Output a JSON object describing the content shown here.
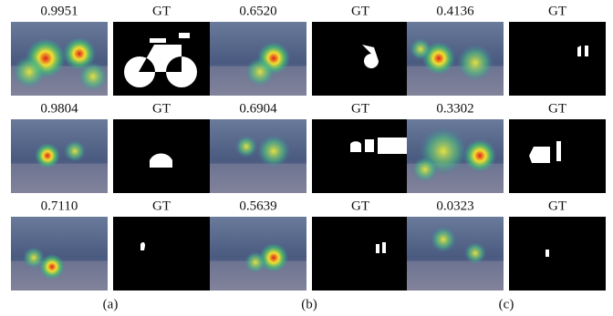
{
  "figure": {
    "groups": [
      {
        "caption": "(a)",
        "rows": [
          {
            "score": "0.9951",
            "gt": "GT"
          },
          {
            "score": "0.9804",
            "gt": "GT"
          },
          {
            "score": "0.7110",
            "gt": "GT"
          }
        ]
      },
      {
        "caption": "(b)",
        "rows": [
          {
            "score": "0.6520",
            "gt": "GT"
          },
          {
            "score": "0.6904",
            "gt": "GT"
          },
          {
            "score": "0.5639",
            "gt": "GT"
          }
        ]
      },
      {
        "caption": "(c)",
        "rows": [
          {
            "score": "0.4136",
            "gt": "GT"
          },
          {
            "score": "0.3302",
            "gt": "GT"
          },
          {
            "score": "0.0323",
            "gt": "GT"
          }
        ]
      }
    ]
  }
}
